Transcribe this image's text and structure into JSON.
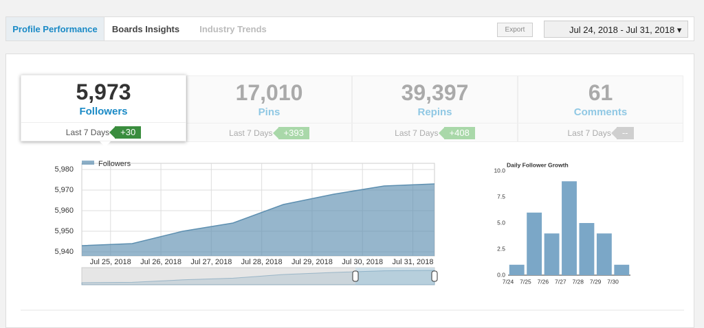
{
  "tabs": [
    "Profile Performance",
    "Boards Insights",
    "Industry Trends"
  ],
  "export": "Export",
  "date_range": "Jul 24, 2018 - Jul 31, 2018",
  "metrics": [
    {
      "value": "5,973",
      "label": "Followers",
      "period": "Last 7 Days",
      "change": "+30"
    },
    {
      "value": "17,010",
      "label": "Pins",
      "period": "Last 7 Days",
      "change": "+393"
    },
    {
      "value": "39,397",
      "label": "Repins",
      "period": "Last 7 Days",
      "change": "+408"
    },
    {
      "value": "61",
      "label": "Comments",
      "period": "Last 7 Days",
      "change": "--"
    }
  ],
  "chart_data": [
    {
      "type": "area",
      "categories": [
        null,
        "Jul 25, 2018",
        "Jul 26, 2018",
        "Jul 27, 2018",
        "Jul 28, 2018",
        "Jul 29, 2018",
        "Jul 30, 2018",
        "Jul 31, 2018"
      ],
      "series": [
        {
          "name": "Followers",
          "color": "#5d8fb0",
          "values": [
            5943,
            5944,
            5950,
            5954,
            5963,
            5968,
            5972,
            5973
          ]
        }
      ],
      "ylim": [
        5938,
        5983
      ],
      "yticks": [
        {
          "value": 5940,
          "label": "5,940"
        },
        {
          "value": 5950,
          "label": "5,950"
        },
        {
          "value": 5960,
          "label": "5,960"
        },
        {
          "value": 5970,
          "label": "5,970"
        },
        {
          "value": 5980,
          "label": "5,980"
        }
      ],
      "grid": true
    },
    {
      "type": "bar",
      "title": "Daily Follower Growth",
      "categories": [
        "7/24",
        "7/25",
        "7/26",
        "7/27",
        "7/28",
        "7/29",
        "7/30"
      ],
      "values": [
        1,
        6,
        4,
        9,
        5,
        4,
        1
      ],
      "color": "#7ba7c7",
      "ylim": [
        0,
        10
      ],
      "yticks": [
        {
          "value": 0,
          "label": "0.0"
        },
        {
          "value": 2.5,
          "label": "2.5"
        },
        {
          "value": 5,
          "label": "5.0"
        },
        {
          "value": 7.5,
          "label": "7.5"
        },
        {
          "value": 10,
          "label": "10.0"
        }
      ]
    }
  ]
}
